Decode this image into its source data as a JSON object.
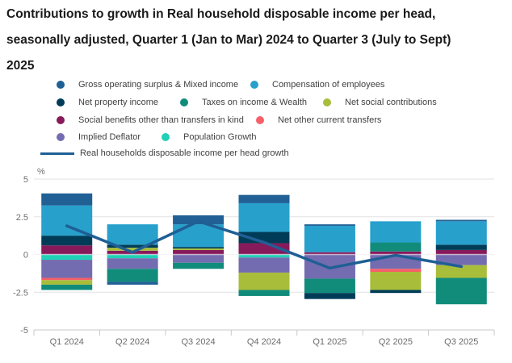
{
  "chart_data": {
    "type": "bar",
    "subtype": "stacked-bar-with-line-overlay",
    "title": "Contributions to growth in Real household disposable income per head, seasonally adjusted, Quarter 1 (Jan to Mar) 2024 to Quarter 3 (July to Sept) 2025",
    "ylabel": "%",
    "ylim": [
      -5,
      5
    ],
    "grid": true,
    "legend_position": "top-left",
    "yticks": [
      "5",
      "2.5",
      "0",
      "-2.5",
      "-5"
    ],
    "ytick_values": [
      5,
      2.5,
      0,
      -2.5,
      -5
    ],
    "categories": [
      "Q1 2024",
      "Q2 2024",
      "Q3 2024",
      "Q4 2024",
      "Q1 2025",
      "Q2 2025",
      "Q3 2025"
    ],
    "series": [
      {
        "id": "gross",
        "name": "Gross operating surplus & Mixed income",
        "color": "#206095",
        "values": [
          0.8,
          -0.2,
          0.6,
          0.55,
          0.1,
          0,
          0.1
        ]
      },
      {
        "id": "comp",
        "name": "Compensation of employees",
        "color": "#27a0cc",
        "values": [
          2.0,
          1.35,
          1.5,
          1.9,
          1.75,
          1.4,
          1.55
        ]
      },
      {
        "id": "property",
        "name": "Net property income",
        "color": "#003c57",
        "values": [
          0.65,
          0.2,
          0.1,
          0.75,
          -0.4,
          -0.2,
          0.35
        ]
      },
      {
        "id": "taxes",
        "name": "Taxes on income & Wealth",
        "color": "#118c7b",
        "values": [
          -0.35,
          -0.85,
          -0.4,
          -0.4,
          -0.95,
          0.6,
          -1.75
        ]
      },
      {
        "id": "social_contrib",
        "name": "Net social contributions",
        "color": "#a8bd3a",
        "values": [
          -0.3,
          0.2,
          0.1,
          -1.15,
          0,
          -1.2,
          -0.85
        ]
      },
      {
        "id": "social_benefits",
        "name": "Social benefits other than transfers in kind",
        "color": "#871a5b",
        "values": [
          0.6,
          0.25,
          0.3,
          0.75,
          0.15,
          0.2,
          0.3
        ]
      },
      {
        "id": "other_transfers",
        "name": "Net other current transfers",
        "color": "#f66068",
        "values": [
          -0.15,
          0,
          0,
          0,
          0,
          -0.2,
          0
        ]
      },
      {
        "id": "deflator",
        "name": "Implied Deflator",
        "color": "#746cb1",
        "values": [
          -1.2,
          -0.7,
          -0.55,
          -1.0,
          -1.6,
          -0.95,
          -0.7
        ]
      },
      {
        "id": "population",
        "name": "Population Growth",
        "color": "#22d0b6",
        "values": [
          -0.35,
          -0.25,
          0,
          -0.2,
          0,
          0,
          0
        ]
      }
    ],
    "stack_pos_order": [
      "social_benefits",
      "social_contrib",
      "taxes",
      "property",
      "comp",
      "gross"
    ],
    "stack_neg_order": [
      "population",
      "deflator",
      "other_transfers",
      "social_contrib",
      "taxes",
      "property",
      "gross"
    ],
    "line_series": {
      "id": "line",
      "name": "Real households disposable income per head growth",
      "color": "#1f5f94",
      "values": [
        1.9,
        0.15,
        2.2,
        0.8,
        -0.9,
        -0.05,
        -0.8
      ]
    }
  }
}
